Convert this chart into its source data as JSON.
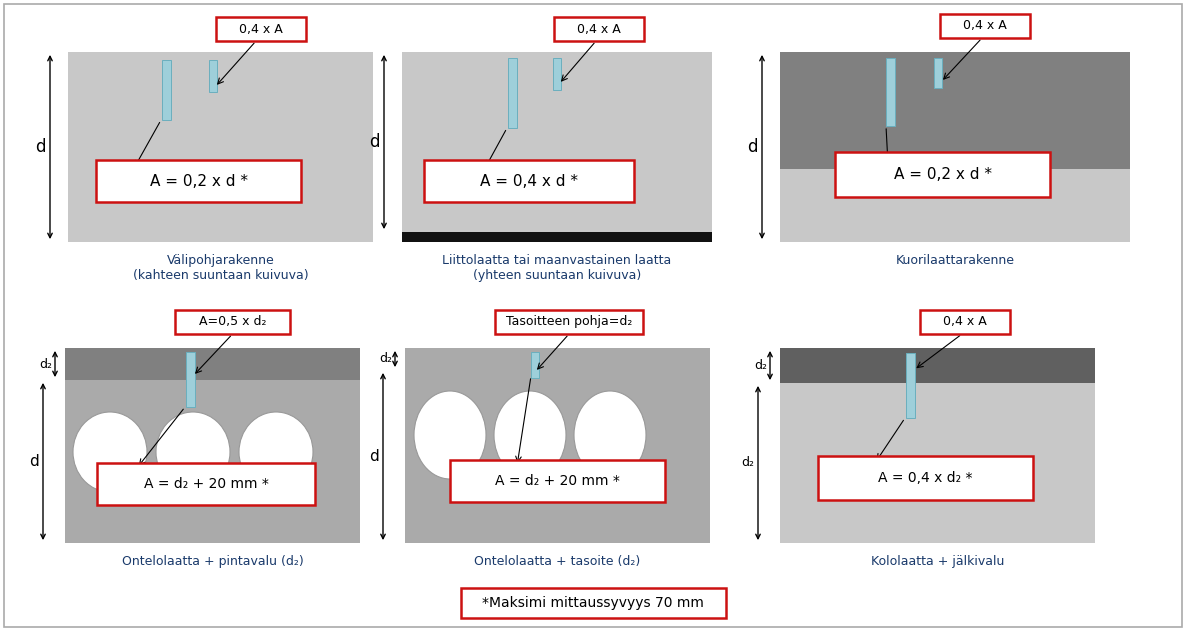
{
  "bg_color": "#ffffff",
  "gray_light": "#c8c8c8",
  "gray_medium": "#aaaaaa",
  "gray_dark": "#808080",
  "gray_darker": "#606060",
  "cyan_color": "#9ecfda",
  "red_color": "#cc1111",
  "black": "#000000",
  "text_color": "#1a3a6b",
  "panel_titles": [
    "Välipohjarakenne\n(kahteen suuntaan kuivuva)",
    "Liittolaatta tai maanvastainen laatta\n(yhteen suuntaan kuivuva)",
    "Kuorilaattarakenne",
    "Ontelolaatta + pintavalu (d₂)",
    "Ontelolaatta + tasoite (d₂)",
    "Kololaatta + jälkivalu"
  ],
  "formulas": [
    "A = 0,2 x d *",
    "A = 0,4 x d *",
    "A = 0,2 x d *",
    "A = d₂ + 20 mm *",
    "A = d₂ + 20 mm *",
    "A = 0,4 x d₂ *"
  ],
  "top_labels": [
    "0,4 x A",
    "0,4 x A",
    "0,4 x A",
    "A=0,5 x d₂",
    "Tasoitteen pohja=d₂",
    "0,4 x A"
  ],
  "footer_text": "*Maksimi mittaussyvyys 70 mm"
}
